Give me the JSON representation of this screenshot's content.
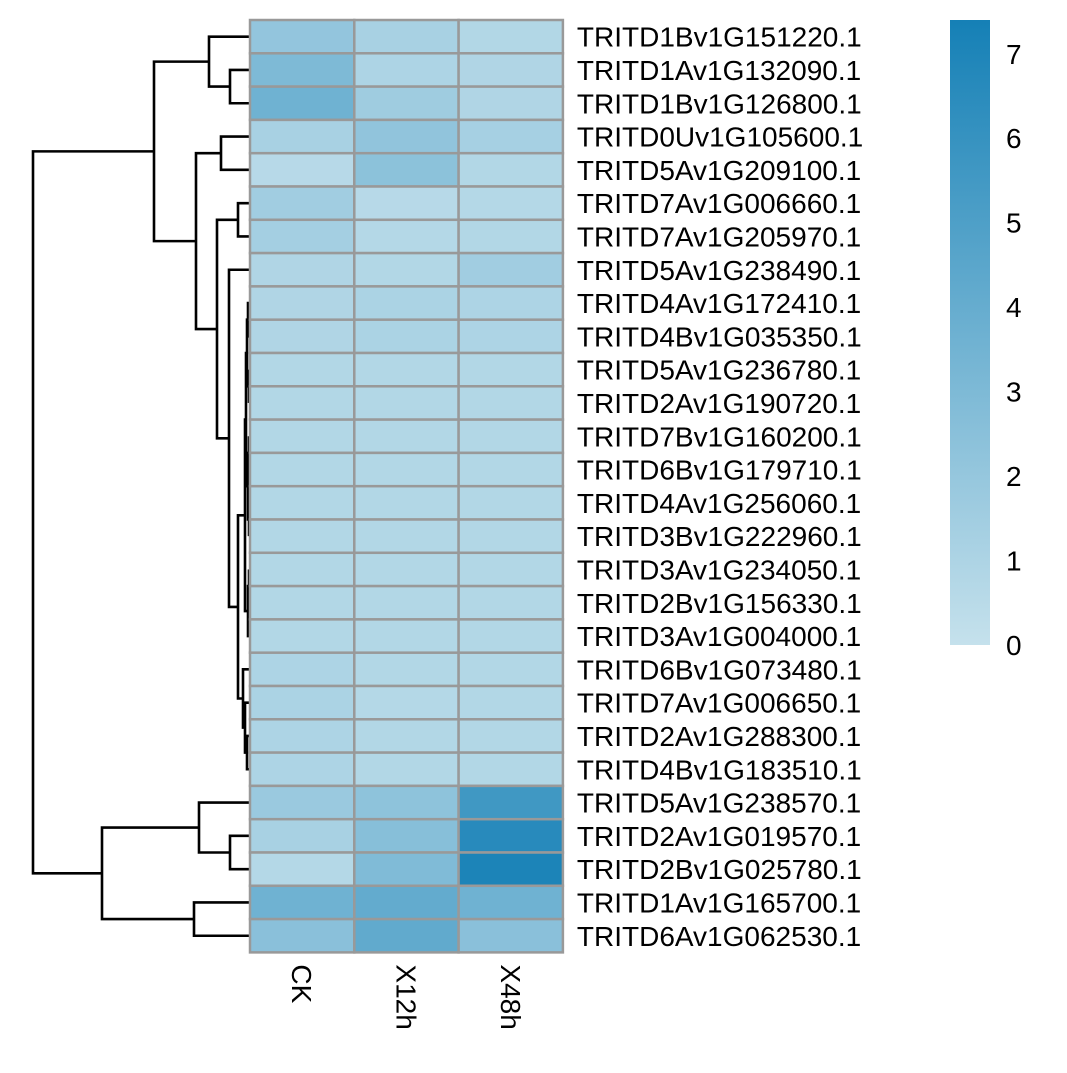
{
  "chart_data": {
    "type": "heatmap",
    "columns": [
      "CK",
      "X12h",
      "X48h"
    ],
    "rows": [
      "TRITD1Bv1G151220.1",
      "TRITD1Av1G132090.1",
      "TRITD1Bv1G126800.1",
      "TRITD0Uv1G105600.1",
      "TRITD5Av1G209100.1",
      "TRITD7Av1G006660.1",
      "TRITD7Av1G205970.1",
      "TRITD5Av1G238490.1",
      "TRITD4Av1G172410.1",
      "TRITD4Bv1G035350.1",
      "TRITD5Av1G236780.1",
      "TRITD2Av1G190720.1",
      "TRITD7Bv1G160200.1",
      "TRITD6Bv1G179710.1",
      "TRITD4Av1G256060.1",
      "TRITD3Bv1G222960.1",
      "TRITD3Av1G234050.1",
      "TRITD2Bv1G156330.1",
      "TRITD3Av1G004000.1",
      "TRITD6Bv1G073480.1",
      "TRITD7Av1G006650.1",
      "TRITD2Av1G288300.1",
      "TRITD4Bv1G183510.1",
      "TRITD5Av1G238570.1",
      "TRITD2Av1G019570.1",
      "TRITD2Bv1G025780.1",
      "TRITD1Av1G165700.1",
      "TRITD6Av1G062530.1"
    ],
    "values": [
      [
        2.1,
        1.2,
        0.8
      ],
      [
        3.0,
        1.0,
        0.9
      ],
      [
        3.6,
        1.6,
        0.9
      ],
      [
        1.2,
        2.2,
        1.3
      ],
      [
        0.6,
        2.4,
        0.8
      ],
      [
        1.5,
        0.6,
        0.7
      ],
      [
        1.4,
        0.7,
        0.8
      ],
      [
        0.9,
        0.8,
        1.5
      ],
      [
        0.9,
        1.1,
        1.0
      ],
      [
        0.9,
        1.1,
        1.0
      ],
      [
        0.8,
        0.8,
        0.8
      ],
      [
        0.8,
        0.8,
        0.8
      ],
      [
        0.8,
        0.8,
        0.8
      ],
      [
        0.8,
        0.8,
        0.8
      ],
      [
        0.8,
        0.8,
        0.8
      ],
      [
        0.8,
        0.8,
        0.8
      ],
      [
        0.8,
        0.8,
        0.8
      ],
      [
        0.8,
        0.8,
        0.8
      ],
      [
        0.8,
        0.8,
        0.8
      ],
      [
        1.0,
        0.8,
        0.8
      ],
      [
        1.1,
        0.7,
        0.8
      ],
      [
        1.0,
        0.8,
        0.8
      ],
      [
        1.0,
        0.8,
        0.8
      ],
      [
        1.8,
        2.3,
        5.6
      ],
      [
        1.2,
        2.6,
        6.6
      ],
      [
        0.7,
        2.9,
        7.1
      ],
      [
        3.6,
        4.1,
        3.6
      ],
      [
        2.5,
        4.2,
        2.5
      ]
    ],
    "scale": {
      "min": 0,
      "max": 7.4,
      "ticks": [
        0,
        1,
        2,
        3,
        4,
        5,
        6,
        7
      ],
      "colors": [
        "#c5e1ec",
        "#1580b6"
      ]
    },
    "dendrogram": "rows",
    "cell_border_color": "#999999",
    "dendro_color": "#000000",
    "legend_position": "right"
  }
}
